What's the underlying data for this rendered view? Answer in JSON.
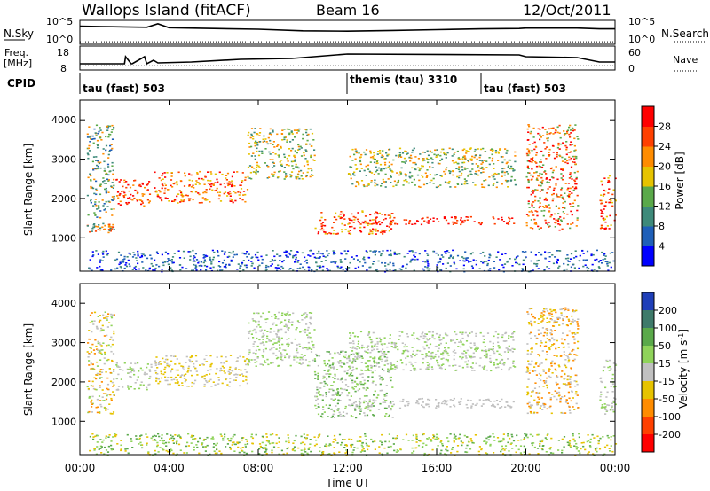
{
  "header": {
    "station": "Wallops Island (fitACF)",
    "beam": "Beam 16",
    "date": "12/Oct/2011"
  },
  "colors": {
    "echo_gray": "#c0c0c0",
    "frame": "#000000"
  },
  "chart_data": [
    {
      "type": "line",
      "name": "nsky-nsearch-panel",
      "ylabel_left": "N.Sky",
      "ylabel_right": "N.Search",
      "yticks_left": [
        "10^5",
        "10^0"
      ],
      "yticks_right": [
        "10^5",
        "10^0"
      ],
      "x_range_hours": [
        0,
        24
      ],
      "segments_hours": [
        [
          0,
          19.7
        ],
        [
          20.0,
          22.3
        ],
        [
          23.3,
          24.0
        ]
      ],
      "series": [
        {
          "name": "N.Sky",
          "style": "solid",
          "x": [
            0,
            1,
            2,
            3,
            3.5,
            4,
            6,
            8,
            10,
            12,
            14,
            16,
            18,
            19.7,
            20.0,
            22.3,
            23.3,
            24
          ],
          "y": [
            4.2,
            4.1,
            4.0,
            3.9,
            4.8,
            3.8,
            3.6,
            3.4,
            3.0,
            2.9,
            3.1,
            3.3,
            3.5,
            3.6,
            3.7,
            3.7,
            3.5,
            3.5
          ]
        },
        {
          "name": "N.Search",
          "style": "dotted",
          "x": [
            0,
            24
          ],
          "y": [
            0.2,
            0.2
          ]
        }
      ]
    },
    {
      "type": "line",
      "name": "freq-nave-panel",
      "ylabel_left": "Freq. [MHz]",
      "ylabel_right": "Nave",
      "yticks_left": [
        "18",
        "8"
      ],
      "yticks_right": [
        "60",
        "0"
      ],
      "x_range_hours": [
        0,
        24
      ],
      "series": [
        {
          "name": "Freq.",
          "style": "solid",
          "x": [
            0,
            2.0,
            2.05,
            2.3,
            2.35,
            2.9,
            3.0,
            3.3,
            3.5,
            5.0,
            7.2,
            9.5,
            12.0,
            19.7,
            20.0,
            22.3,
            23.3,
            24
          ],
          "y": [
            10.0,
            10.0,
            14.0,
            10.0,
            10.0,
            14.0,
            10.0,
            12.0,
            10.5,
            11.0,
            12.5,
            13.0,
            15.5,
            15.0,
            14.0,
            13.5,
            11.0,
            11.0
          ]
        },
        {
          "name": "Nave",
          "style": "dotted",
          "x": [
            0,
            24
          ],
          "y": [
            5,
            5
          ]
        }
      ]
    },
    {
      "type": "table",
      "name": "cpid-strip",
      "label": "CPID",
      "entries": [
        {
          "start_hour": 0,
          "text": "tau (fast) 503"
        },
        {
          "start_hour": 12.0,
          "text": "themis (tau) 3310"
        },
        {
          "start_hour": 18.0,
          "text": "tau (fast) 503"
        }
      ]
    },
    {
      "type": "heatmap",
      "name": "power-panel",
      "ylabel": "Slant Range [km]",
      "yticks": [
        "1000",
        "2000",
        "3000",
        "4000"
      ],
      "ylim": [
        150,
        4500
      ],
      "colorbar_label": "Power [dB]",
      "colorbar_ticks": [
        "4",
        "8",
        "12",
        "16",
        "20",
        "24",
        "28"
      ],
      "colorbar_colors": [
        "#0000ff",
        "#1f5fb8",
        "#3e8a7a",
        "#5aa94a",
        "#e6c300",
        "#ff8c00",
        "#ff4000",
        "#ff0000"
      ],
      "echo_bands": [
        {
          "x": [
            0.3,
            1.5
          ],
          "y": [
            1150,
            1400
          ],
          "colors": [
            "#ff4000",
            "#ff8c00",
            "#3e8a7a"
          ]
        },
        {
          "x": [
            0.3,
            1.5
          ],
          "y": [
            1500,
            3900
          ],
          "colors": [
            "#1f5fb8",
            "#3e8a7a",
            "#5aa94a",
            "#ff8c00"
          ]
        },
        {
          "x": [
            1.6,
            3.2
          ],
          "y": [
            1800,
            2500
          ],
          "colors": [
            "#ff0000",
            "#ff4000",
            "#ff8c00"
          ]
        },
        {
          "x": [
            3.3,
            7.5
          ],
          "y": [
            1900,
            2700
          ],
          "colors": [
            "#ff0000",
            "#ff4000",
            "#ff8c00",
            "#e6c300"
          ]
        },
        {
          "x": [
            7.5,
            10.5
          ],
          "y": [
            2500,
            3800
          ],
          "colors": [
            "#ff8c00",
            "#e6c300",
            "#5aa94a",
            "#3e8a7a"
          ]
        },
        {
          "x": [
            10.5,
            14.0
          ],
          "y": [
            1100,
            1700
          ],
          "colors": [
            "#ff0000",
            "#ff4000",
            "#e6c300"
          ]
        },
        {
          "x": [
            12.0,
            19.5
          ],
          "y": [
            1350,
            1550
          ],
          "colors": [
            "#ff0000",
            "#ff4000"
          ]
        },
        {
          "x": [
            12.0,
            19.5
          ],
          "y": [
            2300,
            3300
          ],
          "colors": [
            "#ff8c00",
            "#e6c300",
            "#5aa94a",
            "#3e8a7a"
          ]
        },
        {
          "x": [
            20.0,
            22.3
          ],
          "y": [
            1200,
            3900
          ],
          "colors": [
            "#ff0000",
            "#ff4000",
            "#ff8c00",
            "#5aa94a"
          ]
        },
        {
          "x": [
            23.3,
            24.0
          ],
          "y": [
            1200,
            2600
          ],
          "colors": [
            "#ff0000",
            "#ff4000",
            "#e6c300"
          ]
        },
        {
          "x": [
            0.3,
            24.0
          ],
          "y": [
            150,
            700
          ],
          "colors": [
            "#1f5fb8",
            "#0000ff",
            "#3e8a7a"
          ]
        }
      ]
    },
    {
      "type": "heatmap",
      "name": "velocity-panel",
      "ylabel": "Slant Range [km]",
      "yticks": [
        "1000",
        "2000",
        "3000",
        "4000"
      ],
      "ylim": [
        150,
        4500
      ],
      "xlabel": "Time UT",
      "xticks": [
        "00:00",
        "04:00",
        "08:00",
        "12:00",
        "16:00",
        "20:00",
        "00:00"
      ],
      "xtick_hours": [
        0,
        4,
        8,
        12,
        16,
        20,
        24
      ],
      "colorbar_label": "Velocity [m s^-1]",
      "colorbar_ticks": [
        "200",
        "100",
        "50",
        "15",
        "-15",
        "-50",
        "-100",
        "-200"
      ],
      "colorbar_colors": [
        "#1f3fb8",
        "#3e7a6a",
        "#5aa94a",
        "#8fd35a",
        "#c0c0c0",
        "#e6c300",
        "#ff8c00",
        "#ff4000",
        "#ff0000"
      ],
      "echo_bands": [
        {
          "x": [
            0.3,
            1.5
          ],
          "y": [
            1200,
            3800
          ],
          "colors": [
            "#c0c0c0",
            "#8fd35a",
            "#e6c300",
            "#ff8c00"
          ]
        },
        {
          "x": [
            1.6,
            3.2
          ],
          "y": [
            1800,
            2500
          ],
          "colors": [
            "#c0c0c0",
            "#8fd35a"
          ]
        },
        {
          "x": [
            3.3,
            7.5
          ],
          "y": [
            1900,
            2700
          ],
          "colors": [
            "#c0c0c0",
            "#e6c300"
          ]
        },
        {
          "x": [
            7.5,
            10.5
          ],
          "y": [
            2400,
            3800
          ],
          "colors": [
            "#c0c0c0",
            "#8fd35a"
          ]
        },
        {
          "x": [
            10.5,
            14.0
          ],
          "y": [
            1100,
            2800
          ],
          "colors": [
            "#8fd35a",
            "#5aa94a",
            "#c0c0c0"
          ]
        },
        {
          "x": [
            12.0,
            19.5
          ],
          "y": [
            1350,
            1600
          ],
          "colors": [
            "#c0c0c0"
          ]
        },
        {
          "x": [
            12.0,
            19.5
          ],
          "y": [
            2300,
            3300
          ],
          "colors": [
            "#c0c0c0",
            "#8fd35a"
          ]
        },
        {
          "x": [
            20.0,
            22.3
          ],
          "y": [
            1200,
            3900
          ],
          "colors": [
            "#c0c0c0",
            "#e6c300",
            "#ff8c00"
          ]
        },
        {
          "x": [
            23.3,
            24.0
          ],
          "y": [
            1200,
            2600
          ],
          "colors": [
            "#c0c0c0",
            "#8fd35a"
          ]
        },
        {
          "x": [
            0.3,
            24.0
          ],
          "y": [
            150,
            700
          ],
          "colors": [
            "#e6c300",
            "#8fd35a",
            "#5aa94a"
          ]
        }
      ]
    }
  ]
}
